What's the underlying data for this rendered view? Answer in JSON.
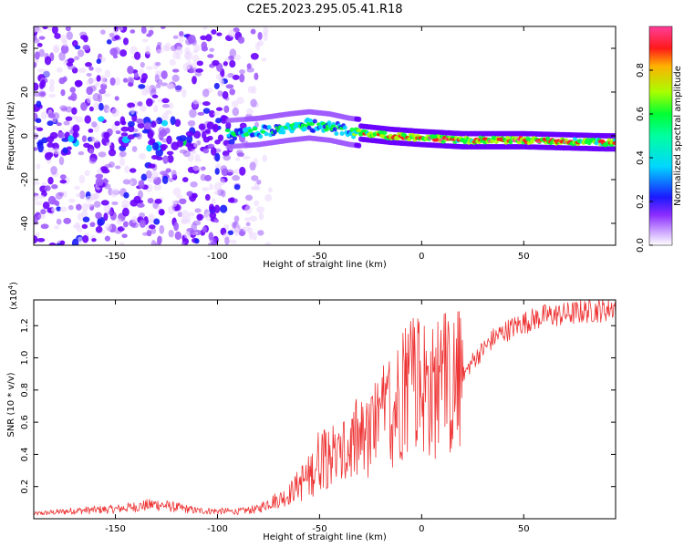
{
  "figure": {
    "title": "C2E5.2023.295.05.41.R18"
  },
  "colors": {
    "snr_line": "#ee3333",
    "colormap": [
      "#ffffff",
      "#ebd6ff",
      "#a05cff",
      "#6a00ff",
      "#1a1aff",
      "#00d7ff",
      "#00ff33",
      "#a8ff00",
      "#ff1a1a",
      "#ff3d9a"
    ]
  },
  "chart_data": [
    {
      "type": "heatmap",
      "title": "",
      "xlabel": "Height of straight line (km)",
      "ylabel": "Frequency (Hz)",
      "xlim": [
        -190,
        95
      ],
      "ylim": [
        -50,
        50
      ],
      "xticks": [
        -150,
        -100,
        -50,
        0,
        50
      ],
      "yticks": [
        -40,
        -20,
        0,
        20,
        40
      ],
      "colorbar": {
        "label": "Normalized spectral amplitude",
        "range": [
          0,
          1
        ],
        "ticks": [
          0.0,
          0.2,
          0.4,
          0.6,
          0.8
        ]
      },
      "ridge": [
        {
          "x": -95,
          "freq": 1,
          "amp": 0.45
        },
        {
          "x": -80,
          "freq": 2,
          "amp": 0.5
        },
        {
          "x": -65,
          "freq": 4,
          "amp": 0.55
        },
        {
          "x": -55,
          "freq": 5,
          "amp": 0.55
        },
        {
          "x": -45,
          "freq": 4,
          "amp": 0.5
        },
        {
          "x": -35,
          "freq": 2,
          "amp": 0.6
        },
        {
          "x": -25,
          "freq": 1,
          "amp": 0.75
        },
        {
          "x": -15,
          "freq": 0,
          "amp": 0.85
        },
        {
          "x": 0,
          "freq": -1,
          "amp": 0.85
        },
        {
          "x": 20,
          "freq": -2,
          "amp": 0.8
        },
        {
          "x": 50,
          "freq": -2,
          "amp": 0.9
        },
        {
          "x": 90,
          "freq": -3,
          "amp": 0.75
        }
      ]
    },
    {
      "type": "line",
      "title": "",
      "xlabel": "Height of straight line (km)",
      "ylabel": "SNR (10 * v/v)",
      "scale_label": "(x10",
      "scale_exponent": "4",
      "xlim": [
        -190,
        95
      ],
      "ylim": [
        0,
        13600
      ],
      "xticks": [
        -150,
        -100,
        -50,
        0,
        50
      ],
      "yticks": [
        2000,
        4000,
        6000,
        8000,
        10000,
        12000
      ],
      "ytick_labels": [
        "0.2",
        "0.4",
        "0.6",
        "0.8",
        "1.0",
        "1.2"
      ],
      "series": [
        {
          "name": "",
          "x": [
            -190,
            -170,
            -150,
            -130,
            -110,
            -90,
            -80,
            -75,
            -70,
            -65,
            -60,
            -55,
            -50,
            -45,
            -40,
            -35,
            -30,
            -25,
            -20,
            -15,
            -10,
            -5,
            0,
            5,
            10,
            15,
            20,
            25,
            30,
            35,
            40,
            50,
            60,
            70,
            80,
            90,
            95
          ],
          "y": [
            300,
            500,
            600,
            900,
            500,
            450,
            600,
            1000,
            1200,
            1500,
            2200,
            2600,
            3800,
            4200,
            3500,
            4500,
            4800,
            5000,
            5800,
            6500,
            7800,
            8600,
            8500,
            7800,
            8200,
            8100,
            8800,
            9800,
            10500,
            11200,
            11600,
            12200,
            12600,
            12700,
            12900,
            13000,
            13200
          ]
        }
      ]
    }
  ]
}
